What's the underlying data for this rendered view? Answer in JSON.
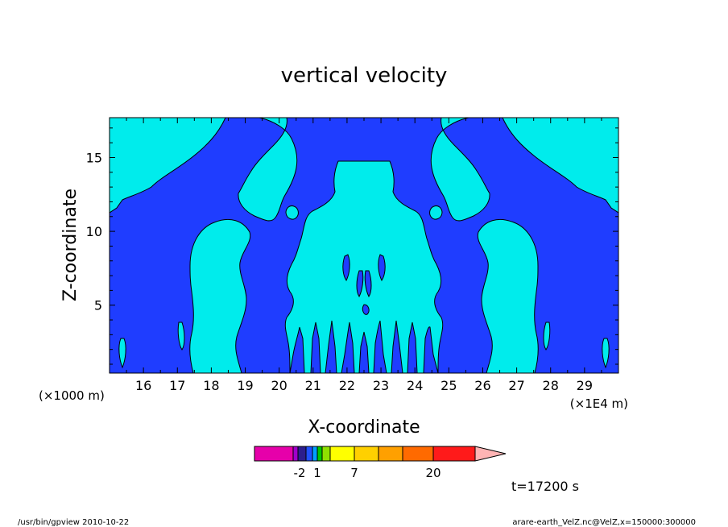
{
  "chart_data": {
    "type": "contour",
    "title": "vertical velocity",
    "xlabel": "X-coordinate",
    "ylabel": "Z-coordinate",
    "x_unit_left": "(×1000 m)",
    "x_unit_right": "(×1E4 m)",
    "xlim": [
      15.0,
      30.0
    ],
    "ylim": [
      0.4,
      17.7
    ],
    "x_ticks": [
      16,
      17,
      18,
      19,
      20,
      21,
      22,
      23,
      24,
      25,
      26,
      27,
      28,
      29
    ],
    "y_ticks": [
      5,
      10,
      15
    ],
    "colors": {
      "negative": "#1f3dff",
      "near_zero": "#00ecec"
    },
    "colorbar": {
      "colors": [
        "#e600aa",
        "#a000cc",
        "#2c1e8e",
        "#2050ff",
        "#00a0ff",
        "#00c800",
        "#90e000",
        "#ffff00",
        "#ffd000",
        "#ffa000",
        "#ff6a00",
        "#ff1a1a",
        "#ff7878",
        "#ffb4b4"
      ],
      "labels": [
        "-2",
        "1",
        "7",
        "20"
      ]
    }
  },
  "annotations": {
    "time": "t=17200 s",
    "footer_left": "/usr/bin/gpview   2010-10-22",
    "footer_right": "arare-earth_VelZ.nc@VelZ,x=150000:300000"
  }
}
